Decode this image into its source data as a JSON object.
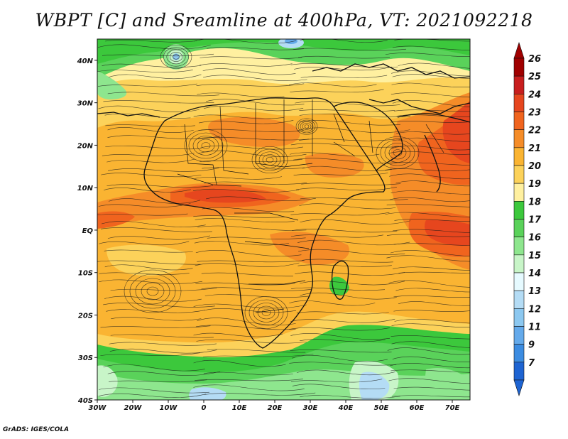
{
  "title": "WBPT [C] and Sreamline at 400hPa, VT: 2021092218",
  "credit": "GrADS: IGES/COLA",
  "map": {
    "lon_range": [
      -30,
      75
    ],
    "lat_range": [
      -40,
      45
    ],
    "x_ticks": [
      {
        "value": -30,
        "label": "30W"
      },
      {
        "value": -20,
        "label": "20W"
      },
      {
        "value": -10,
        "label": "10W"
      },
      {
        "value": 0,
        "label": "0"
      },
      {
        "value": 10,
        "label": "10E"
      },
      {
        "value": 20,
        "label": "20E"
      },
      {
        "value": 30,
        "label": "30E"
      },
      {
        "value": 40,
        "label": "40E"
      },
      {
        "value": 50,
        "label": "50E"
      },
      {
        "value": 60,
        "label": "60E"
      },
      {
        "value": 70,
        "label": "70E"
      }
    ],
    "y_ticks": [
      {
        "value": 40,
        "label": "40N"
      },
      {
        "value": 30,
        "label": "30N"
      },
      {
        "value": 20,
        "label": "20N"
      },
      {
        "value": 10,
        "label": "10N"
      },
      {
        "value": 0,
        "label": "EQ"
      },
      {
        "value": -10,
        "label": "10S"
      },
      {
        "value": -20,
        "label": "20S"
      },
      {
        "value": -30,
        "label": "30S"
      },
      {
        "value": -40,
        "label": "40S"
      }
    ]
  },
  "colorbar": {
    "labels": [
      "26",
      "25",
      "24",
      "23",
      "22",
      "21",
      "20",
      "19",
      "18",
      "17",
      "16",
      "15",
      "14",
      "13",
      "12",
      "11",
      "9",
      "7"
    ],
    "colors": [
      "#a00000",
      "#c81e1e",
      "#e6461e",
      "#f0641e",
      "#f58c28",
      "#fab432",
      "#fcd25a",
      "#fff0a0",
      "#3cc83c",
      "#5ad25a",
      "#8ee68e",
      "#c8f5c8",
      "#e6faff",
      "#b4dcf5",
      "#8cc8f0",
      "#64aaeb",
      "#3c8ce1",
      "#1e64d2"
    ],
    "top_cap_color": "#a00000",
    "bottom_cap_color": "#1e64d2"
  }
}
